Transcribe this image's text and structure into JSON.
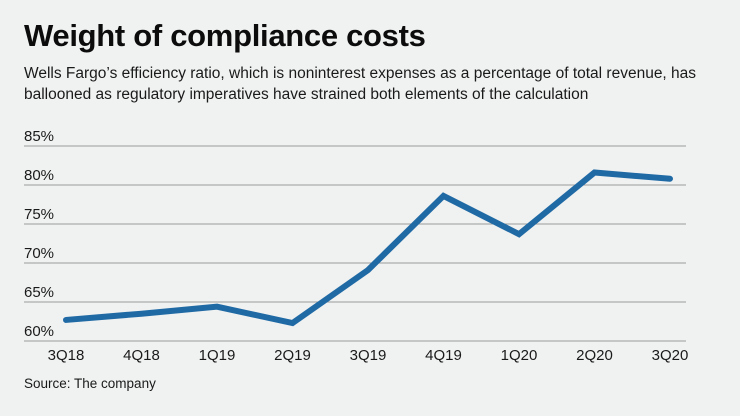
{
  "header": {
    "title": "Weight of compliance costs",
    "subtitle": "Wells Fargo’s efficiency ratio, which is noninterest expenses as a percentage of total revenue, has ballooned as regulatory imperatives have strained both elements of the calculation"
  },
  "footer": {
    "source": "Source: The company"
  },
  "chart_data": {
    "type": "line",
    "title": "Weight of compliance costs",
    "xlabel": "",
    "ylabel": "",
    "categories": [
      "3Q18",
      "4Q18",
      "1Q19",
      "2Q19",
      "3Q19",
      "4Q19",
      "1Q20",
      "2Q20",
      "3Q20"
    ],
    "series": [
      {
        "name": "Efficiency ratio",
        "values": [
          62.7,
          63.5,
          64.4,
          62.3,
          69.1,
          78.6,
          73.7,
          81.6,
          80.8
        ],
        "color": "#1f6aa5"
      }
    ],
    "ylim": [
      60,
      85
    ],
    "yticks": [
      60,
      65,
      70,
      75,
      80,
      85
    ],
    "ytick_labels": [
      "60%",
      "65%",
      "70%",
      "75%",
      "80%",
      "85%"
    ],
    "grid": true,
    "legend": "none"
  }
}
